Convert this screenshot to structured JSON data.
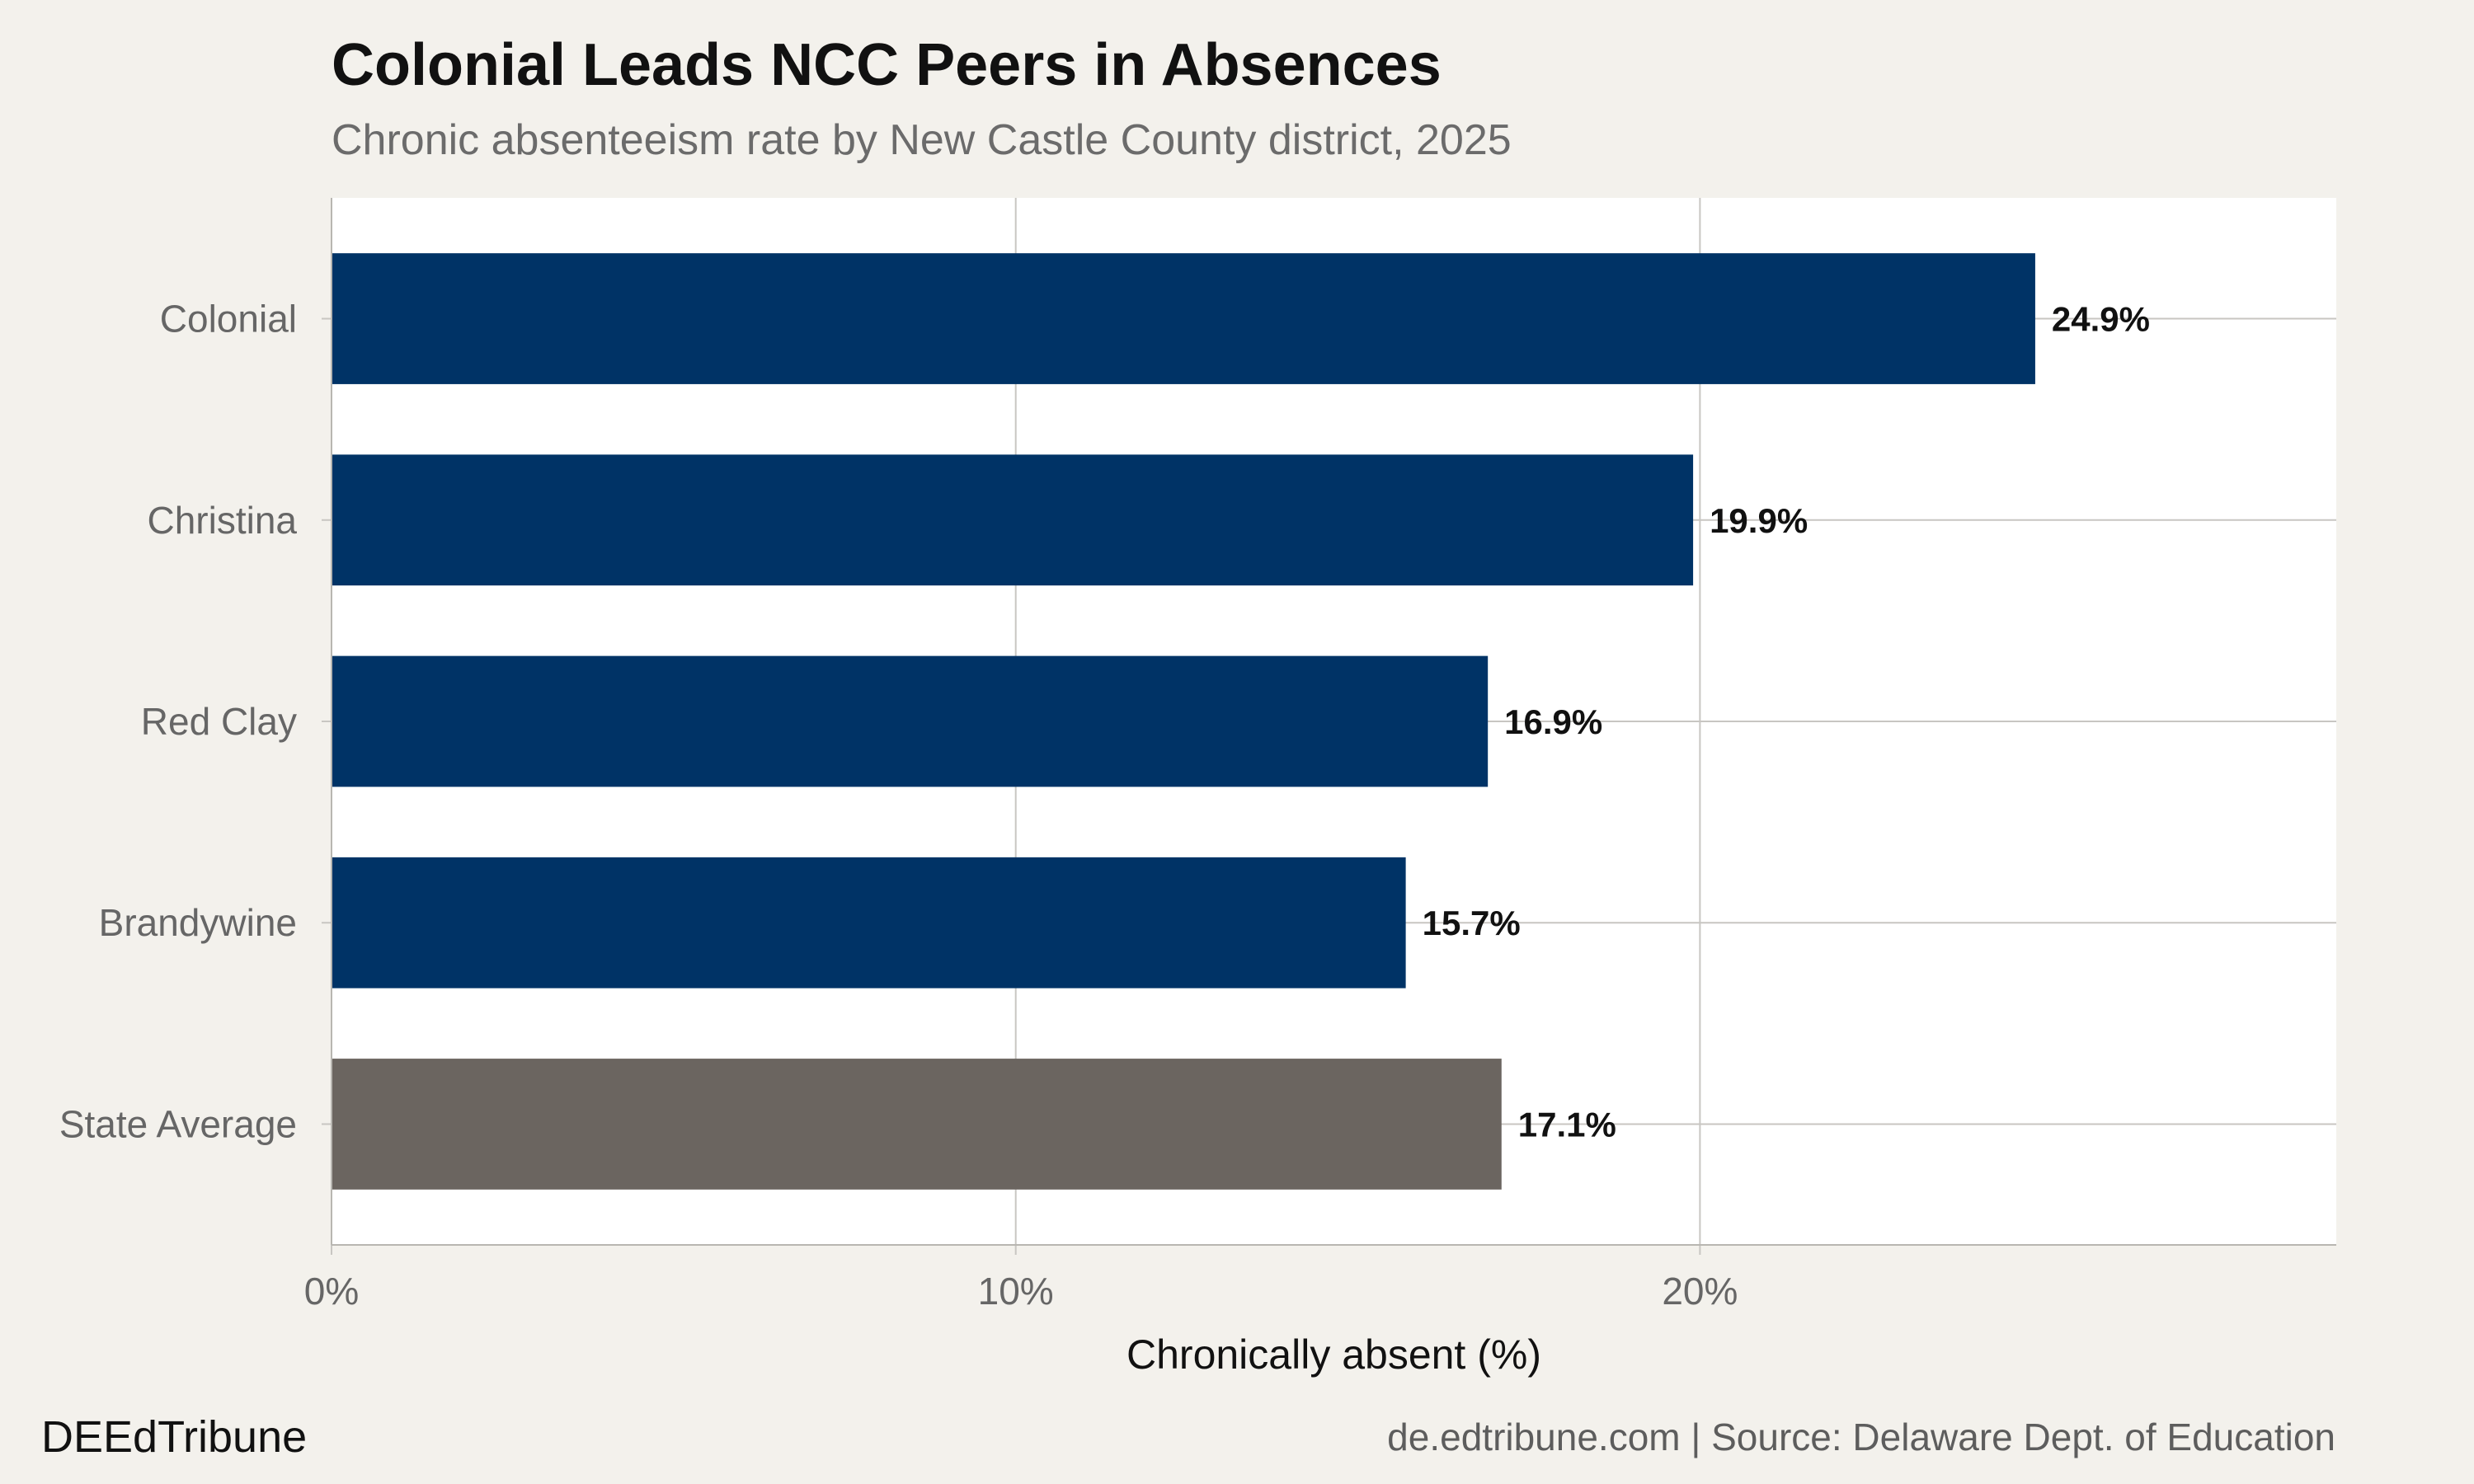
{
  "chart_data": {
    "type": "bar",
    "orientation": "horizontal",
    "title": "Colonial Leads NCC Peers in Absences",
    "subtitle": "Chronic absenteeism rate by New Castle County district, 2025",
    "xlabel": "Chronically absent (%)",
    "ylabel": "",
    "xlim": [
      0,
      29.3
    ],
    "x_ticks": [
      0,
      10,
      20
    ],
    "x_tick_labels": [
      "0%",
      "10%",
      "20%"
    ],
    "grid": true,
    "categories": [
      "Colonial",
      "Christina",
      "Red Clay",
      "Brandywine",
      "State Average"
    ],
    "values": [
      24.9,
      19.9,
      16.9,
      15.7,
      17.1
    ],
    "value_labels": [
      "24.9%",
      "19.9%",
      "16.9%",
      "15.7%",
      "17.1%"
    ],
    "bar_colors": [
      "#003366",
      "#003366",
      "#003366",
      "#003366",
      "#6b6560"
    ]
  },
  "footer": {
    "brand": "DEEdTribune",
    "source": "de.edtribune.com | Source: Delaware Dept. of Education"
  },
  "colors": {
    "background": "#f3f1ec",
    "panel": "#ffffff",
    "district_bar": "#003366",
    "state_bar": "#6b6560",
    "grid": "#c8c6c2"
  }
}
